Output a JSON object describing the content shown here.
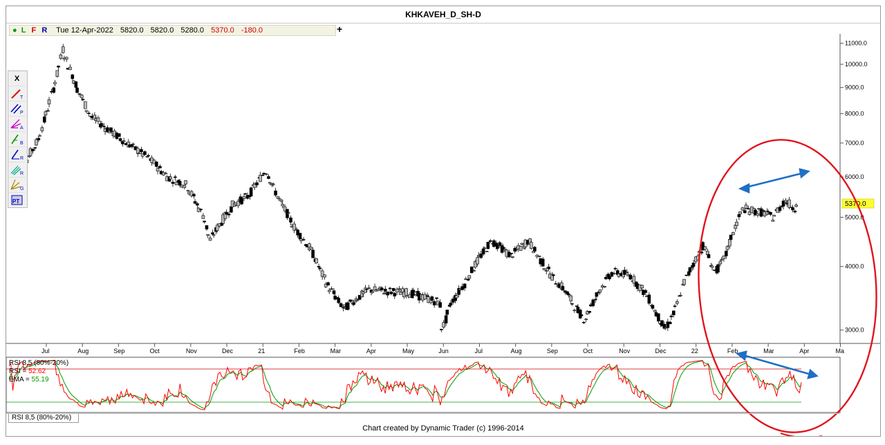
{
  "window": {
    "title": "KHKAVEH_D_SH-D"
  },
  "info_bar": {
    "flags": [
      "L",
      "F",
      "R"
    ],
    "date": "Tue 12-Apr-2022",
    "open": "5820.0",
    "high": "5820.0",
    "low": "5280.0",
    "close": "5370.0",
    "change": "-180.0",
    "plus": "+"
  },
  "toolbar": {
    "close_label": "X",
    "tools": [
      {
        "icon": "trend-line-icon",
        "sub": "T"
      },
      {
        "icon": "parallel-lines-icon",
        "sub": "P"
      },
      {
        "icon": "andrews-fork-icon",
        "sub": "A"
      },
      {
        "icon": "fib-tool-icon",
        "sub": "B"
      },
      {
        "icon": "ratio-line-icon",
        "sub": "R"
      },
      {
        "icon": "ratio-channel-icon",
        "sub": "R"
      },
      {
        "icon": "gann-fan-icon",
        "sub": "G"
      },
      {
        "icon": "price-time-icon",
        "sub": "PT"
      }
    ]
  },
  "chart_data": {
    "type": "candlestick",
    "title": "KHKAVEH_D_SH-D",
    "y_scale": "log",
    "ylim": [
      2850,
      11300
    ],
    "y_ticks": [
      "11000.0",
      "10000.0",
      "9000.0",
      "8000.0",
      "7000.0",
      "6000.0",
      "5000.0",
      "4000.0",
      "3000.0"
    ],
    "last_price_label": "5370.0",
    "x_tick_labels": [
      "Jul",
      "Aug",
      "Sep",
      "Oct",
      "Nov",
      "Dec",
      "21",
      "Feb",
      "Mar",
      "Apr",
      "May",
      "Jun",
      "Jul",
      "Aug",
      "Sep",
      "Oct",
      "Nov",
      "Dec",
      "22",
      "Feb",
      "Mar",
      "Apr",
      "Ma"
    ],
    "price_path": [
      [
        "2020-06-12",
        6200
      ],
      [
        "2020-06-20",
        6400
      ],
      [
        "2020-07-01",
        7100
      ],
      [
        "2020-07-10",
        8300
      ],
      [
        "2020-07-18",
        9700
      ],
      [
        "2020-07-22",
        10700
      ],
      [
        "2020-07-25",
        10200
      ],
      [
        "2020-08-05",
        8800
      ],
      [
        "2020-08-15",
        7900
      ],
      [
        "2020-08-28",
        7500
      ],
      [
        "2020-09-15",
        7000
      ],
      [
        "2020-10-05",
        6500
      ],
      [
        "2020-10-20",
        6000
      ],
      [
        "2020-11-05",
        5800
      ],
      [
        "2020-11-20",
        5000
      ],
      [
        "2020-11-25",
        4500
      ],
      [
        "2020-12-05",
        4900
      ],
      [
        "2020-12-15",
        5300
      ],
      [
        "2020-12-28",
        5500
      ],
      [
        "2021-01-12",
        6200
      ],
      [
        "2021-01-22",
        5500
      ],
      [
        "2021-02-05",
        4800
      ],
      [
        "2021-02-20",
        4300
      ],
      [
        "2021-03-05",
        3700
      ],
      [
        "2021-03-20",
        3300
      ],
      [
        "2021-03-30",
        3450
      ],
      [
        "2021-04-10",
        3600
      ],
      [
        "2021-05-15",
        3550
      ],
      [
        "2021-06-10",
        3400
      ],
      [
        "2021-06-12",
        3000
      ],
      [
        "2021-06-20",
        3400
      ],
      [
        "2021-07-01",
        3700
      ],
      [
        "2021-07-15",
        4200
      ],
      [
        "2021-07-25",
        4500
      ],
      [
        "2021-08-10",
        4200
      ],
      [
        "2021-08-25",
        4500
      ],
      [
        "2021-09-05",
        4100
      ],
      [
        "2021-09-15",
        3800
      ],
      [
        "2021-09-25",
        3600
      ],
      [
        "2021-10-05",
        3300
      ],
      [
        "2021-10-12",
        3150
      ],
      [
        "2021-10-25",
        3600
      ],
      [
        "2021-11-05",
        3900
      ],
      [
        "2021-11-20",
        3850
      ],
      [
        "2021-12-05",
        3500
      ],
      [
        "2021-12-20",
        3000
      ],
      [
        "2021-12-28",
        3250
      ],
      [
        "2022-01-05",
        3700
      ],
      [
        "2022-01-12",
        4000
      ],
      [
        "2022-01-22",
        4400
      ],
      [
        "2022-02-01",
        3900
      ],
      [
        "2022-02-08",
        4100
      ],
      [
        "2022-02-18",
        4800
      ],
      [
        "2022-02-25",
        5200
      ],
      [
        "2022-03-05",
        5150
      ],
      [
        "2022-03-15",
        5100
      ],
      [
        "2022-03-22",
        5000
      ],
      [
        "2022-04-02",
        5400
      ],
      [
        "2022-04-10",
        5200
      ],
      [
        "2022-04-12",
        5370
      ]
    ],
    "rsi_panel": {
      "title": "RSI 8,5 (80%-20%)",
      "rsi_label": "RSI = ",
      "rsi_value": "52.62",
      "ema_label": "EMA = ",
      "ema_value": "55.19",
      "upper_band": 80,
      "lower_band": 20,
      "rsi_color": "#ff0000",
      "ema_color": "#009900"
    },
    "annotations": [
      {
        "type": "double-arrow",
        "color": "#1f6fc4",
        "panel": "price"
      },
      {
        "type": "double-arrow",
        "color": "#1f6fc4",
        "panel": "rsi"
      },
      {
        "type": "ellipse",
        "color": "#e0141e",
        "panel": "both"
      }
    ]
  },
  "tab": {
    "label": "RSI 8,5 (80%-20%)"
  },
  "footer": {
    "text": "Chart created by Dynamic Trader  (c)  1996-2014"
  }
}
